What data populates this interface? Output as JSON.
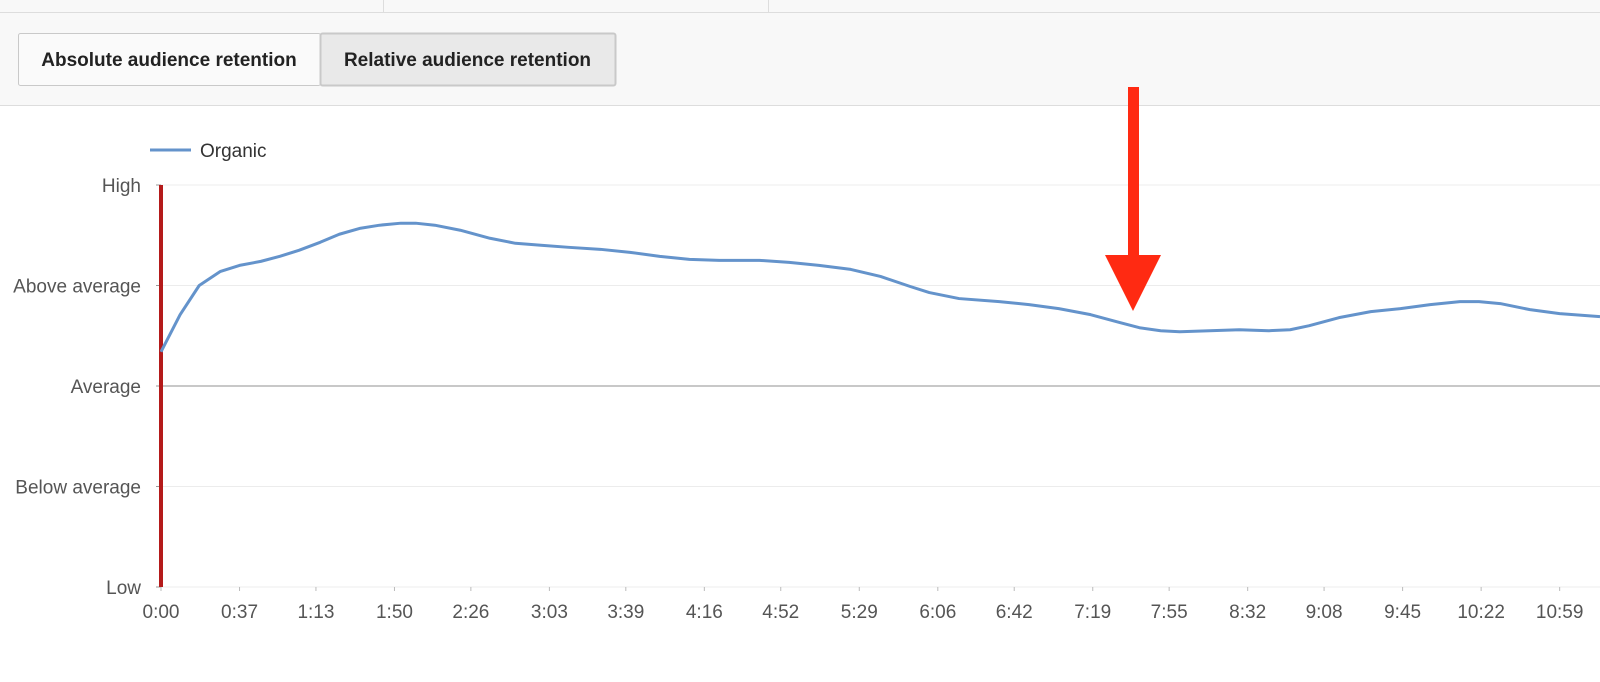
{
  "toolbar": {
    "buttons": [
      "Absolute audience retention",
      "Relative audience retention"
    ],
    "selected": 1
  },
  "chart_data": {
    "type": "line",
    "x": [
      0,
      9,
      18,
      28,
      37,
      47,
      56,
      65,
      75,
      84,
      94,
      103,
      113,
      120,
      129,
      141,
      155,
      167,
      179,
      192,
      207,
      221,
      235,
      249,
      263,
      282,
      296,
      310,
      325,
      339,
      353,
      362,
      376,
      395,
      409,
      423,
      438,
      452,
      461,
      471,
      480,
      494,
      508,
      522,
      532,
      541,
      555,
      570,
      584,
      598,
      612,
      621,
      631,
      645,
      659,
      678
    ],
    "series": [
      {
        "name": "Organic",
        "color": "#6493cb",
        "values": [
          2.34,
          2.71,
          3.0,
          3.14,
          3.2,
          3.24,
          3.29,
          3.35,
          3.43,
          3.51,
          3.57,
          3.6,
          3.62,
          3.62,
          3.6,
          3.55,
          3.47,
          3.42,
          3.4,
          3.38,
          3.36,
          3.33,
          3.29,
          3.26,
          3.25,
          3.25,
          3.23,
          3.2,
          3.16,
          3.09,
          2.99,
          2.93,
          2.87,
          2.84,
          2.81,
          2.77,
          2.71,
          2.63,
          2.58,
          2.55,
          2.54,
          2.55,
          2.56,
          2.55,
          2.56,
          2.6,
          2.68,
          2.74,
          2.77,
          2.81,
          2.84,
          2.84,
          2.82,
          2.76,
          2.72,
          2.69
        ]
      }
    ],
    "xlim": [
      0,
      678
    ],
    "xticks": [
      {
        "value": 0,
        "label": "0:00"
      },
      {
        "value": 37,
        "label": "0:37"
      },
      {
        "value": 73,
        "label": "1:13"
      },
      {
        "value": 110,
        "label": "1:50"
      },
      {
        "value": 146,
        "label": "2:26"
      },
      {
        "value": 183,
        "label": "3:03"
      },
      {
        "value": 219,
        "label": "3:39"
      },
      {
        "value": 256,
        "label": "4:16"
      },
      {
        "value": 292,
        "label": "4:52"
      },
      {
        "value": 329,
        "label": "5:29"
      },
      {
        "value": 366,
        "label": "6:06"
      },
      {
        "value": 402,
        "label": "6:42"
      },
      {
        "value": 439,
        "label": "7:19"
      },
      {
        "value": 475,
        "label": "7:55"
      },
      {
        "value": 512,
        "label": "8:32"
      },
      {
        "value": 548,
        "label": "9:08"
      },
      {
        "value": 585,
        "label": "9:45"
      },
      {
        "value": 622,
        "label": "10:22"
      },
      {
        "value": 659,
        "label": "10:59"
      }
    ],
    "ylim": [
      0,
      4
    ],
    "yticks": [
      {
        "value": 0,
        "label": "Low"
      },
      {
        "value": 1,
        "label": "Below average"
      },
      {
        "value": 2,
        "label": "Average"
      },
      {
        "value": 3,
        "label": "Above average"
      },
      {
        "value": 4,
        "label": "High"
      }
    ],
    "grid": true
  }
}
